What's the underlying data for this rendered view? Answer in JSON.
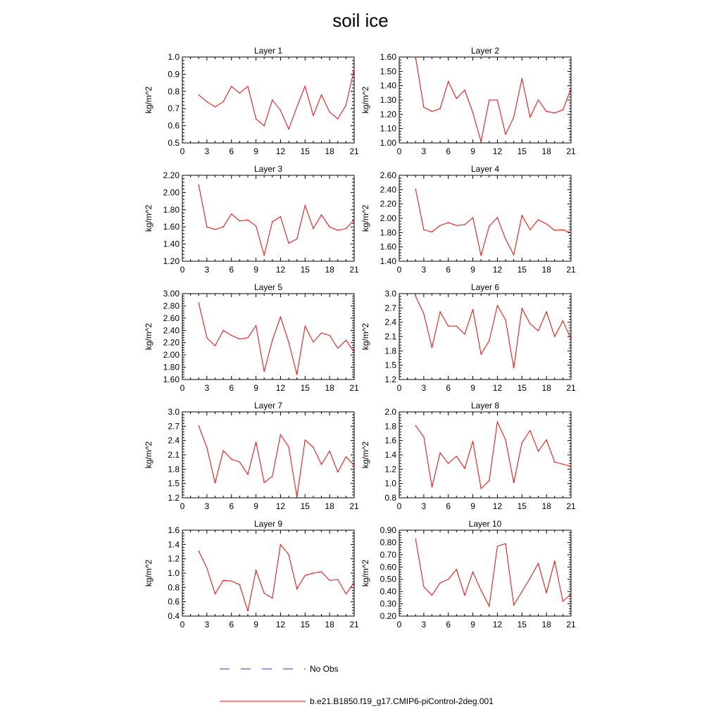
{
  "title": "soil ice",
  "colors": {
    "model": "#ff0000",
    "obs": "#3333cc",
    "axis": "#000000"
  },
  "legend": {
    "entries": [
      {
        "label": "No Obs",
        "style": "dashed",
        "color": "#3333cc"
      },
      {
        "label": "b.e21.B1850.f19_g17.CMIP6-piControl-2deg.001",
        "style": "solid",
        "color": "#ff0000"
      }
    ]
  },
  "chart_data": [
    {
      "type": "line",
      "title": "Layer 1",
      "ylabel": "kg/m^2",
      "xlim": [
        0,
        21
      ],
      "ylim": [
        0.5,
        1.0
      ],
      "xticks": [
        "0",
        "3",
        "6",
        "9",
        "12",
        "15",
        "18",
        "21"
      ],
      "yticks": [
        "0.5",
        "0.6",
        "0.7",
        "0.8",
        "0.9",
        "1.0"
      ],
      "series": [
        {
          "name": "b.e21.B1850.f19_g17.CMIP6-piControl-2deg.001",
          "x": [
            2,
            3,
            4,
            5,
            6,
            7,
            8,
            9,
            10,
            11,
            12,
            13,
            14,
            15,
            16,
            17,
            18,
            19,
            20,
            21
          ],
          "y": [
            0.78,
            0.74,
            0.71,
            0.74,
            0.83,
            0.79,
            0.83,
            0.64,
            0.6,
            0.75,
            0.69,
            0.58,
            0.71,
            0.83,
            0.66,
            0.78,
            0.68,
            0.64,
            0.72,
            0.93
          ]
        }
      ]
    },
    {
      "type": "line",
      "title": "Layer 2",
      "ylabel": "kg/m^2",
      "xlim": [
        0,
        21
      ],
      "ylim": [
        1.0,
        1.6
      ],
      "xticks": [
        "0",
        "3",
        "6",
        "9",
        "12",
        "15",
        "18",
        "21"
      ],
      "yticks": [
        "1.00",
        "1.10",
        "1.20",
        "1.30",
        "1.40",
        "1.50",
        "1.60"
      ],
      "series": [
        {
          "name": "b.e21.B1850.f19_g17.CMIP6-piControl-2deg.001",
          "x": [
            2,
            3,
            4,
            5,
            6,
            7,
            8,
            9,
            10,
            11,
            12,
            13,
            14,
            15,
            16,
            17,
            18,
            19,
            20,
            21
          ],
          "y": [
            1.6,
            1.25,
            1.22,
            1.24,
            1.43,
            1.31,
            1.37,
            1.21,
            1.01,
            1.3,
            1.3,
            1.06,
            1.18,
            1.45,
            1.18,
            1.3,
            1.22,
            1.21,
            1.23,
            1.38
          ]
        }
      ]
    },
    {
      "type": "line",
      "title": "Layer 3",
      "ylabel": "kg/m^2",
      "xlim": [
        0,
        21
      ],
      "ylim": [
        1.2,
        2.2
      ],
      "xticks": [
        "0",
        "3",
        "6",
        "9",
        "12",
        "15",
        "18",
        "21"
      ],
      "yticks": [
        "1.20",
        "1.40",
        "1.60",
        "1.80",
        "2.00",
        "2.20"
      ],
      "series": [
        {
          "name": "b.e21.B1850.f19_g17.CMIP6-piControl-2deg.001",
          "x": [
            2,
            3,
            4,
            5,
            6,
            7,
            8,
            9,
            10,
            11,
            12,
            13,
            14,
            15,
            16,
            17,
            18,
            19,
            20,
            21
          ],
          "y": [
            2.09,
            1.6,
            1.57,
            1.6,
            1.75,
            1.67,
            1.68,
            1.61,
            1.27,
            1.66,
            1.72,
            1.41,
            1.46,
            1.85,
            1.58,
            1.74,
            1.6,
            1.56,
            1.58,
            1.68
          ]
        }
      ]
    },
    {
      "type": "line",
      "title": "Layer 4",
      "ylabel": "kg/m^2",
      "xlim": [
        0,
        21
      ],
      "ylim": [
        1.4,
        2.6
      ],
      "xticks": [
        "0",
        "3",
        "6",
        "9",
        "12",
        "15",
        "18",
        "21"
      ],
      "yticks": [
        "1.40",
        "1.60",
        "1.80",
        "2.00",
        "2.20",
        "2.40",
        "2.60"
      ],
      "series": [
        {
          "name": "b.e21.B1850.f19_g17.CMIP6-piControl-2deg.001",
          "x": [
            2,
            3,
            4,
            5,
            6,
            7,
            8,
            9,
            10,
            11,
            12,
            13,
            14,
            15,
            16,
            17,
            18,
            19,
            20,
            21
          ],
          "y": [
            2.41,
            1.84,
            1.81,
            1.9,
            1.94,
            1.9,
            1.91,
            2.01,
            1.48,
            1.89,
            2.01,
            1.71,
            1.49,
            2.04,
            1.84,
            1.98,
            1.92,
            1.83,
            1.84,
            1.8
          ]
        }
      ]
    },
    {
      "type": "line",
      "title": "Layer 5",
      "ylabel": "kg/m^2",
      "xlim": [
        0,
        21
      ],
      "ylim": [
        1.6,
        3.0
      ],
      "xticks": [
        "0",
        "3",
        "6",
        "9",
        "12",
        "15",
        "18",
        "21"
      ],
      "yticks": [
        "1.60",
        "1.80",
        "2.00",
        "2.20",
        "2.40",
        "2.60",
        "2.80",
        "3.00"
      ],
      "series": [
        {
          "name": "b.e21.B1850.f19_g17.CMIP6-piControl-2deg.001",
          "x": [
            2,
            3,
            4,
            5,
            6,
            7,
            8,
            9,
            10,
            11,
            12,
            13,
            14,
            15,
            16,
            17,
            18,
            19,
            20,
            21
          ],
          "y": [
            2.85,
            2.28,
            2.15,
            2.4,
            2.32,
            2.26,
            2.28,
            2.48,
            1.73,
            2.24,
            2.62,
            2.21,
            1.68,
            2.47,
            2.21,
            2.36,
            2.32,
            2.11,
            2.24,
            2.05
          ]
        }
      ]
    },
    {
      "type": "line",
      "title": "Layer 6",
      "ylabel": "kg/m^2",
      "xlim": [
        0,
        21
      ],
      "ylim": [
        1.2,
        3.0
      ],
      "xticks": [
        "0",
        "3",
        "6",
        "9",
        "12",
        "15",
        "18",
        "21"
      ],
      "yticks": [
        "1.2",
        "1.5",
        "1.8",
        "2.1",
        "2.4",
        "2.7",
        "3.0"
      ],
      "series": [
        {
          "name": "b.e21.B1850.f19_g17.CMIP6-piControl-2deg.001",
          "x": [
            2,
            3,
            4,
            5,
            6,
            7,
            8,
            9,
            10,
            11,
            12,
            13,
            14,
            15,
            16,
            17,
            18,
            19,
            20,
            21
          ],
          "y": [
            2.95,
            2.58,
            1.87,
            2.62,
            2.32,
            2.32,
            2.15,
            2.67,
            1.73,
            2.01,
            2.75,
            2.45,
            1.44,
            2.69,
            2.37,
            2.22,
            2.62,
            2.1,
            2.43,
            2.05
          ]
        }
      ]
    },
    {
      "type": "line",
      "title": "Layer 7",
      "ylabel": "kg/m^2",
      "xlim": [
        0,
        21
      ],
      "ylim": [
        1.2,
        3.0
      ],
      "xticks": [
        "0",
        "3",
        "6",
        "9",
        "12",
        "15",
        "18",
        "21"
      ],
      "yticks": [
        "1.2",
        "1.5",
        "1.8",
        "2.1",
        "2.4",
        "2.7",
        "3.0"
      ],
      "series": [
        {
          "name": "b.e21.B1850.f19_g17.CMIP6-piControl-2deg.001",
          "x": [
            2,
            3,
            4,
            5,
            6,
            7,
            8,
            9,
            10,
            11,
            12,
            13,
            14,
            15,
            16,
            17,
            18,
            19,
            20,
            21
          ],
          "y": [
            2.71,
            2.25,
            1.51,
            2.19,
            2.01,
            1.95,
            1.69,
            2.37,
            1.52,
            1.65,
            2.52,
            2.27,
            1.22,
            2.41,
            2.26,
            1.9,
            2.18,
            1.74,
            2.06,
            1.88
          ]
        }
      ]
    },
    {
      "type": "line",
      "title": "Layer 8",
      "ylabel": "kg/m^2",
      "xlim": [
        0,
        21
      ],
      "ylim": [
        0.8,
        2.0
      ],
      "xticks": [
        "0",
        "3",
        "6",
        "9",
        "12",
        "15",
        "18",
        "21"
      ],
      "yticks": [
        "0.8",
        "1.0",
        "1.2",
        "1.4",
        "1.6",
        "1.8",
        "2.0"
      ],
      "series": [
        {
          "name": "b.e21.B1850.f19_g17.CMIP6-piControl-2deg.001",
          "x": [
            2,
            3,
            4,
            5,
            6,
            7,
            8,
            9,
            10,
            11,
            12,
            13,
            14,
            15,
            16,
            17,
            18,
            19,
            20,
            21
          ],
          "y": [
            1.81,
            1.65,
            0.95,
            1.43,
            1.28,
            1.38,
            1.21,
            1.59,
            0.93,
            1.04,
            1.86,
            1.61,
            1.01,
            1.57,
            1.74,
            1.45,
            1.61,
            1.3,
            1.27,
            1.24
          ]
        }
      ]
    },
    {
      "type": "line",
      "title": "Layer 9",
      "ylabel": "kg/m^2",
      "xlim": [
        0,
        21
      ],
      "ylim": [
        0.4,
        1.6
      ],
      "xticks": [
        "0",
        "3",
        "6",
        "9",
        "12",
        "15",
        "18",
        "21"
      ],
      "yticks": [
        "0.4",
        "0.6",
        "0.8",
        "1.0",
        "1.2",
        "1.4",
        "1.6"
      ],
      "series": [
        {
          "name": "b.e21.B1850.f19_g17.CMIP6-piControl-2deg.001",
          "x": [
            2,
            3,
            4,
            5,
            6,
            7,
            8,
            9,
            10,
            11,
            12,
            13,
            14,
            15,
            16,
            17,
            18,
            19,
            20,
            21
          ],
          "y": [
            1.31,
            1.07,
            0.71,
            0.9,
            0.89,
            0.84,
            0.47,
            1.04,
            0.72,
            0.65,
            1.4,
            1.26,
            0.78,
            0.97,
            1.0,
            1.02,
            0.9,
            0.91,
            0.71,
            0.87
          ]
        }
      ]
    },
    {
      "type": "line",
      "title": "Layer 10",
      "ylabel": "kg/m^2",
      "xlim": [
        0,
        21
      ],
      "ylim": [
        0.2,
        0.9
      ],
      "xticks": [
        "0",
        "3",
        "6",
        "9",
        "12",
        "15",
        "18",
        "21"
      ],
      "yticks": [
        "0.20",
        "0.30",
        "0.40",
        "0.50",
        "0.60",
        "0.70",
        "0.80",
        "0.90"
      ],
      "series": [
        {
          "name": "b.e21.B1850.f19_g17.CMIP6-piControl-2deg.001",
          "x": [
            2,
            3,
            4,
            5,
            6,
            7,
            8,
            9,
            10,
            11,
            12,
            13,
            14,
            15,
            16,
            17,
            18,
            19,
            20,
            21
          ],
          "y": [
            0.83,
            0.44,
            0.37,
            0.47,
            0.5,
            0.58,
            0.37,
            0.56,
            0.41,
            0.28,
            0.77,
            0.79,
            0.29,
            0.4,
            0.51,
            0.63,
            0.39,
            0.65,
            0.32,
            0.38
          ]
        }
      ]
    }
  ]
}
